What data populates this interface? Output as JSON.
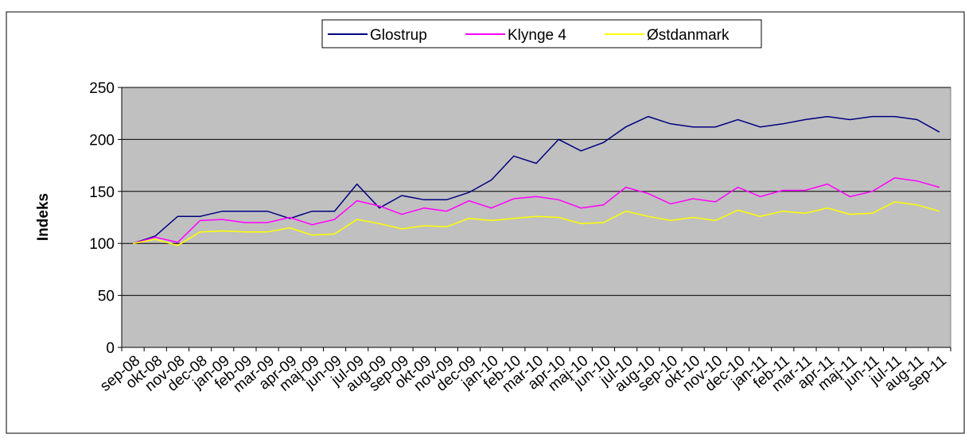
{
  "chart_data": {
    "type": "line",
    "y_label": "Indeks",
    "categories": [
      "sep-08",
      "okt-08",
      "nov-08",
      "dec-08",
      "jan-09",
      "feb-09",
      "mar-09",
      "apr-09",
      "maj-09",
      "jun-09",
      "jul-09",
      "aug-09",
      "sep-09",
      "okt-09",
      "nov-09",
      "dec-09",
      "jan-10",
      "feb-10",
      "mar-10",
      "apr-10",
      "maj-10",
      "jun-10",
      "jul-10",
      "aug-10",
      "sep-10",
      "okt-10",
      "nov-10",
      "dec-10",
      "jan-11",
      "feb-11",
      "mar-11",
      "apr-11",
      "maj-11",
      "jun-11",
      "jul-11",
      "aug-11",
      "sep-11"
    ],
    "series": [
      {
        "name": "Glostrup",
        "color": "#000080",
        "values": [
          100,
          107,
          126,
          126,
          131,
          131,
          131,
          124,
          131,
          131,
          157,
          134,
          146,
          142,
          142,
          149,
          161,
          184,
          177,
          200,
          189,
          197,
          212,
          222,
          215,
          212,
          212,
          219,
          212,
          215,
          219,
          222,
          219,
          222,
          222,
          219,
          207
        ]
      },
      {
        "name": "Klynge 4",
        "color": "#ff00ff",
        "values": [
          100,
          106,
          101,
          122,
          123,
          120,
          120,
          125,
          118,
          123,
          141,
          136,
          128,
          134,
          131,
          141,
          134,
          143,
          145,
          142,
          134,
          137,
          154,
          148,
          138,
          143,
          140,
          154,
          145,
          151,
          151,
          157,
          145,
          150,
          163,
          160,
          154
        ]
      },
      {
        "name": "Østdanmark",
        "color": "#ffff00",
        "values": [
          100,
          104,
          98,
          111,
          112,
          111,
          111,
          115,
          108,
          109,
          123,
          119,
          114,
          117,
          116,
          124,
          122,
          124,
          126,
          125,
          119,
          120,
          131,
          126,
          122,
          125,
          122,
          132,
          126,
          131,
          129,
          134,
          128,
          129,
          140,
          137,
          131
        ]
      }
    ],
    "ylim": [
      0,
      250
    ],
    "yticks": [
      0,
      50,
      100,
      150,
      200,
      250
    ],
    "grid": true,
    "legend": "top"
  }
}
